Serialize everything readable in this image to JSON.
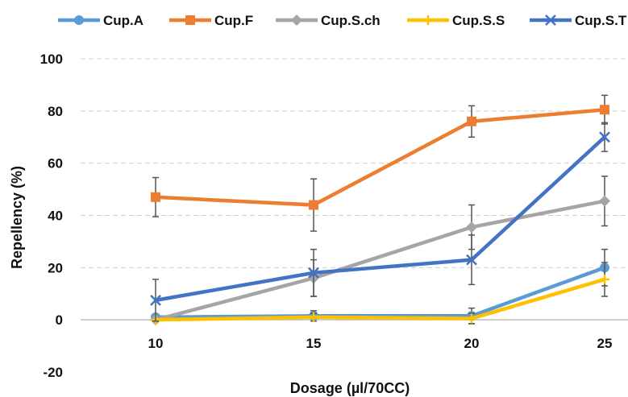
{
  "chart_data": {
    "type": "line",
    "title": "",
    "xlabel": "Dosage (µl/70CC)",
    "ylabel": "Repellency (%)",
    "categories": [
      "10",
      "15",
      "20",
      "25"
    ],
    "ylim": [
      -20,
      100
    ],
    "yticks": [
      "-20",
      "0",
      "20",
      "40",
      "60",
      "80",
      "100"
    ],
    "grid": "horizontal dashed",
    "legend_position": "top",
    "series": [
      {
        "name": "Cup.A",
        "color": "#5B9BD5",
        "marker": "circle",
        "values": [
          1,
          1.5,
          1.5,
          20
        ],
        "errors": [
          1,
          2,
          3,
          7
        ]
      },
      {
        "name": "Cup.F",
        "color": "#ED7D31",
        "marker": "square",
        "values": [
          47,
          44,
          76,
          80.5
        ],
        "errors": [
          7.5,
          10,
          6,
          5.5
        ]
      },
      {
        "name": "Cup.S.ch",
        "color": "#A5A5A5",
        "marker": "diamond",
        "values": [
          0,
          16,
          35.5,
          45.5
        ],
        "errors": [
          0,
          7,
          8.5,
          9.5
        ]
      },
      {
        "name": "Cup.S.S",
        "color": "#FFC000",
        "marker": "plus",
        "values": [
          0,
          1,
          0.5,
          15.5
        ],
        "errors": [
          0,
          1.5,
          2,
          6.5
        ]
      },
      {
        "name": "Cup.S.T",
        "color": "#4472C4",
        "marker": "x",
        "values": [
          7.5,
          18,
          23,
          70
        ],
        "errors": [
          8,
          9,
          9.5,
          5.5
        ]
      }
    ]
  }
}
